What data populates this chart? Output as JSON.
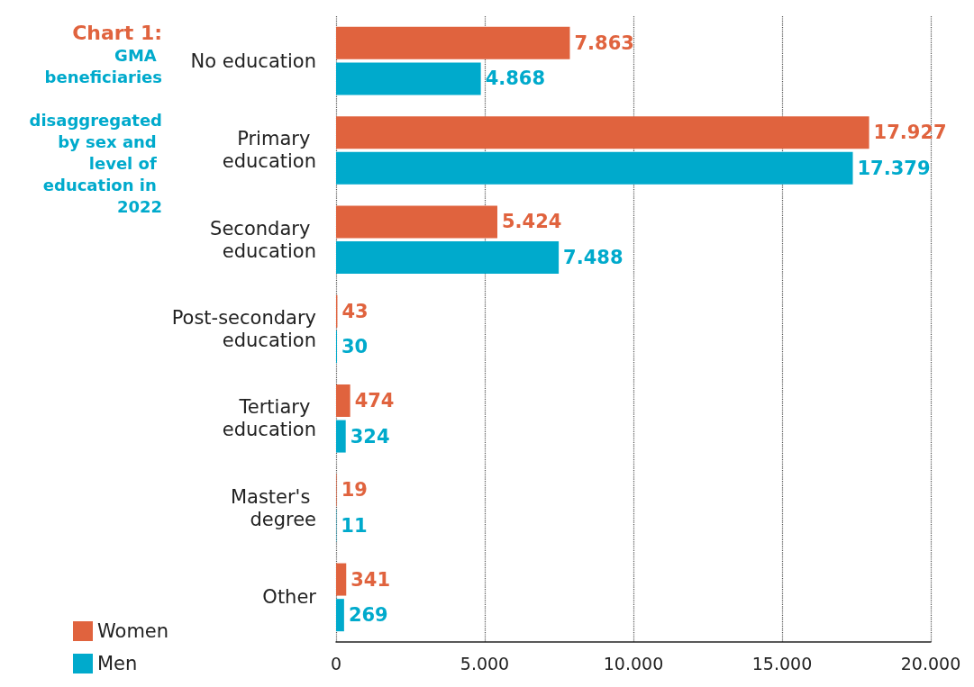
{
  "chart_data": {
    "type": "bar",
    "orientation": "horizontal",
    "title": "Chart 1:",
    "subtitle": "GMA beneficiaries disaggregated by sex and level of education in 2022",
    "categories": [
      "No education",
      "Primary education",
      "Secondary education",
      "Post-secondary education",
      "Tertiary education",
      "Master's degree",
      "Other"
    ],
    "series": [
      {
        "name": "Women",
        "color": "#e0633e",
        "values": [
          7863,
          17927,
          5424,
          43,
          474,
          19,
          341
        ],
        "value_labels": [
          "7.863",
          "17.927",
          "5.424",
          "43",
          "474",
          "19",
          "341"
        ]
      },
      {
        "name": "Men",
        "color": "#00aacc",
        "values": [
          4868,
          17379,
          7488,
          30,
          324,
          11,
          269
        ],
        "value_labels": [
          "4.868",
          "17.379",
          "7.488",
          "30",
          "324",
          "11",
          "269"
        ]
      }
    ],
    "xlim": [
      0,
      20000
    ],
    "xticks": [
      0,
      {
        "value": 5000,
        "label": "5.000"
      },
      {
        "value": 10000,
        "label": "10.000"
      },
      {
        "value": 15000,
        "label": "15.000"
      },
      {
        "value": 20000,
        "label": "20.000"
      }
    ],
    "grid": "x",
    "legend": "bottom left"
  }
}
